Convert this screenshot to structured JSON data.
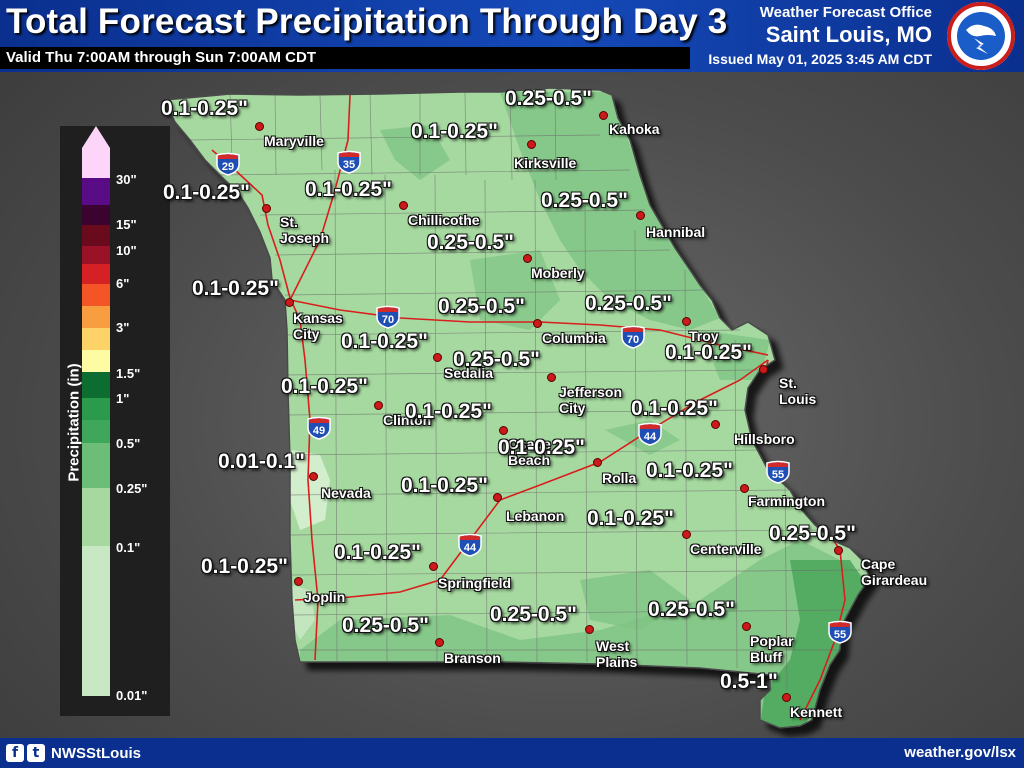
{
  "header": {
    "title": "Total Forecast Precipitation Through Day 3",
    "valid": "Valid Thu 7:00AM through Sun 7:00AM CDT",
    "office_label": "Weather Forecast Office",
    "office_city": "Saint Louis, MO",
    "issued": "Issued May 01, 2025 3:45 AM CDT",
    "logo_text": "NATIONAL WEATHER SERVICE"
  },
  "footer": {
    "facebook_icon": "f",
    "twitter_icon": "t",
    "handle": "NWSStLouis",
    "website": "weather.gov/lsx"
  },
  "legend": {
    "title": "Precipitation (in)",
    "ticks": [
      "30\"",
      "15\"",
      "10\"",
      "6\"",
      "3\"",
      "1.5\"",
      "1\"",
      "0.5\"",
      "0.25\"",
      "0.1\"",
      "0.01\""
    ],
    "colors": [
      "#fcd5f8",
      "#5a0c86",
      "#3b0330",
      "#6a0a1d",
      "#991228",
      "#d52024",
      "#f35527",
      "#f89e41",
      "#fdd266",
      "#fdfba3",
      "#0d6d31",
      "#2c9a4c",
      "#5fb56e",
      "#95cf96",
      "#c7e8c3"
    ]
  },
  "amounts": [
    {
      "text": "0.1-0.25\""
    },
    {
      "text": "0.25-0.5\""
    },
    {
      "text": "0.1-0.25\""
    },
    {
      "text": "0.1-0.25\""
    },
    {
      "text": "0.1-0.25\""
    },
    {
      "text": "0.25-0.5\""
    },
    {
      "text": "0.25-0.5\""
    },
    {
      "text": "0.1-0.25\""
    },
    {
      "text": "0.25-0.5\""
    },
    {
      "text": "0.25-0.5\""
    },
    {
      "text": "0.1-0.25\""
    },
    {
      "text": "0.1-0.25\""
    },
    {
      "text": "0.25-0.5\""
    },
    {
      "text": "0.1-0.25\""
    },
    {
      "text": "0.1-0.25\""
    },
    {
      "text": "0.1-0.25\""
    },
    {
      "text": "0.01-0.1\""
    },
    {
      "text": "0.1-0.25\""
    },
    {
      "text": "0.1-0.25\""
    },
    {
      "text": "0.1-0.25\""
    },
    {
      "text": "0.1-0.25\""
    },
    {
      "text": "0.25-0.5\""
    },
    {
      "text": "0.1-0.25\""
    },
    {
      "text": "0.1-0.25\""
    },
    {
      "text": "0.25-0.5\""
    },
    {
      "text": "0.25-0.5\""
    },
    {
      "text": "0.25-0.5\""
    },
    {
      "text": "0.5-1\""
    }
  ],
  "cities": [
    {
      "name": "Maryville"
    },
    {
      "name": "Kahoka"
    },
    {
      "name": "Kirksville"
    },
    {
      "name": "Chillicothe"
    },
    {
      "name": "St.\nJoseph"
    },
    {
      "name": "Hannibal"
    },
    {
      "name": "Moberly"
    },
    {
      "name": "Kansas\nCity"
    },
    {
      "name": "Columbia"
    },
    {
      "name": "Troy"
    },
    {
      "name": "Sedalia"
    },
    {
      "name": "St.\nLouis"
    },
    {
      "name": "Jefferson\nCity"
    },
    {
      "name": "Clinton"
    },
    {
      "name": "Hillsboro"
    },
    {
      "name": "Osage\nBeach"
    },
    {
      "name": "Rolla"
    },
    {
      "name": "Nevada"
    },
    {
      "name": "Farmington"
    },
    {
      "name": "Lebanon"
    },
    {
      "name": "Centerville"
    },
    {
      "name": "Cape\nGirardeau"
    },
    {
      "name": "Springfield"
    },
    {
      "name": "Joplin"
    },
    {
      "name": "Branson"
    },
    {
      "name": "West\nPlains"
    },
    {
      "name": "Poplar\nBluff"
    },
    {
      "name": "Kennett"
    }
  ],
  "interstates": [
    {
      "number": "29"
    },
    {
      "number": "35"
    },
    {
      "number": "70"
    },
    {
      "number": "70"
    },
    {
      "number": "49"
    },
    {
      "number": "44"
    },
    {
      "number": "55"
    },
    {
      "number": "44"
    },
    {
      "number": "55"
    }
  ]
}
